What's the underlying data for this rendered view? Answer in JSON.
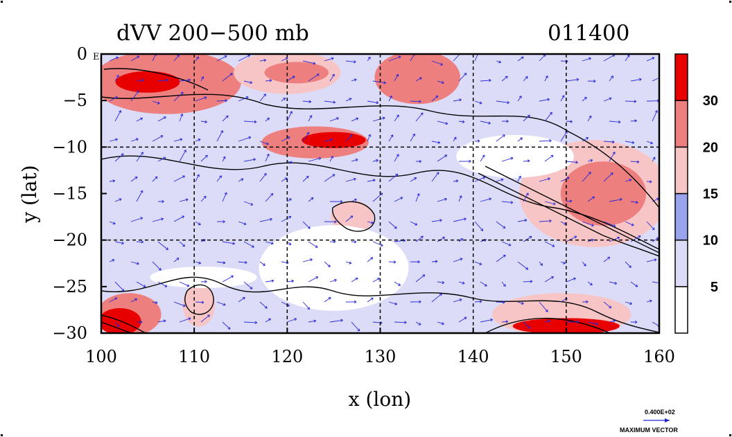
{
  "chart_data": {
    "type": "heatmap",
    "title": "dVV 200−500 mb",
    "timestamp": "011400",
    "xlabel": "x (lon)",
    "ylabel": "y (lat)",
    "xlim": [
      100,
      160
    ],
    "ylim": [
      -30,
      0
    ],
    "x_ticks": [
      "100",
      "110",
      "120",
      "130",
      "140",
      "150",
      "160"
    ],
    "y_ticks": [
      "0",
      "−5",
      "−10",
      "−15",
      "−20",
      "−25",
      "−30"
    ],
    "grid": true,
    "corner_label": "E",
    "colorbar": {
      "levels": [
        "5",
        "10",
        "15",
        "20",
        "30"
      ],
      "colors": [
        "#ffffff",
        "#dcdcf8",
        "#9aa3ee",
        "#f7c5c5",
        "#ee7f7f",
        "#e80000"
      ]
    },
    "vector_key": {
      "value": "0.400E+02",
      "label": "MAXIMUM VECTOR"
    },
    "regions": [
      {
        "x": [
          100,
          114
        ],
        "y": [
          -6,
          0
        ],
        "level": 4
      },
      {
        "x": [
          102,
          108
        ],
        "y": [
          -4,
          -2
        ],
        "level": 5
      },
      {
        "x": [
          115,
          125
        ],
        "y": [
          -4,
          0
        ],
        "level": 3
      },
      {
        "x": [
          118,
          124
        ],
        "y": [
          -3,
          -1
        ],
        "level": 4
      },
      {
        "x": [
          130,
          138
        ],
        "y": [
          -5,
          0
        ],
        "level": 4
      },
      {
        "x": [
          118,
          128
        ],
        "y": [
          -11,
          -8
        ],
        "level": 4
      },
      {
        "x": [
          122,
          128
        ],
        "y": [
          -10,
          -8.5
        ],
        "level": 5
      },
      {
        "x": [
          125,
          129
        ],
        "y": [
          -19,
          -16
        ],
        "level": 3
      },
      {
        "x": [
          146,
          160
        ],
        "y": [
          -20,
          -10
        ],
        "level": 3
      },
      {
        "x": [
          150,
          158
        ],
        "y": [
          -18,
          -12
        ],
        "level": 4
      },
      {
        "x": [
          100,
          106
        ],
        "y": [
          -30,
          -26
        ],
        "level": 4
      },
      {
        "x": [
          100,
          104
        ],
        "y": [
          -30,
          -27.5
        ],
        "level": 5
      },
      {
        "x": [
          109,
          112
        ],
        "y": [
          -29,
          -25
        ],
        "level": 3
      },
      {
        "x": [
          143,
          156
        ],
        "y": [
          -30,
          -26
        ],
        "level": 3
      },
      {
        "x": [
          145,
          155
        ],
        "y": [
          -30,
          -28.5
        ],
        "level": 5
      },
      {
        "x": [
          100,
          116
        ],
        "y": [
          -22,
          -13
        ],
        "level": 1
      },
      {
        "x": [
          118,
          132
        ],
        "y": [
          -27,
          -19
        ],
        "level": 0
      },
      {
        "x": [
          139,
          150
        ],
        "y": [
          -13,
          -9
        ],
        "level": 0
      },
      {
        "x": [
          106,
          116
        ],
        "y": [
          -25,
          -23
        ],
        "level": 0
      }
    ]
  }
}
